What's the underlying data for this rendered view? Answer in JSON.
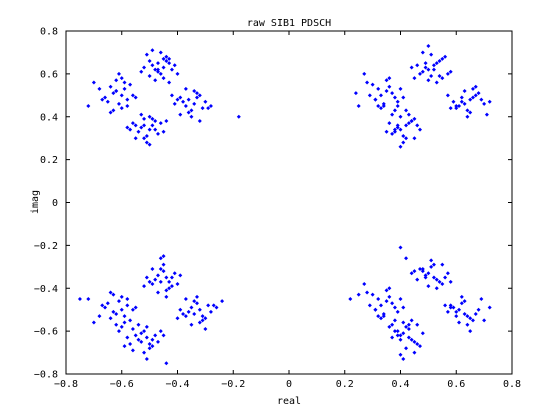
{
  "chart_data": {
    "type": "scatter",
    "title": "raw SIB1 PDSCH",
    "xlabel": "real",
    "ylabel": "imag",
    "xlim": [
      -0.8,
      0.8
    ],
    "ylim": [
      -0.8,
      0.8
    ],
    "xticks": [
      -0.8,
      -0.6,
      -0.4,
      -0.2,
      0,
      0.2,
      0.4,
      0.6,
      0.8
    ],
    "yticks": [
      -0.8,
      -0.6,
      -0.4,
      -0.2,
      0,
      0.2,
      0.4,
      0.6,
      0.8
    ],
    "xtick_labels": [
      "−0.8",
      "−0.6",
      "−0.4",
      "−0.2",
      "0",
      "0.2",
      "0.4",
      "0.6",
      "0.8"
    ],
    "ytick_labels": [
      "−0.8",
      "−0.6",
      "−0.4",
      "−0.2",
      "0",
      "0.2",
      "0.4",
      "0.6",
      "0.8"
    ],
    "grid": false,
    "marker": "diamond",
    "color": "#0000ff",
    "series": [
      {
        "x": [
          -0.62,
          -0.6,
          -0.58,
          -0.64,
          -0.66,
          -0.61,
          -0.59,
          -0.63,
          -0.57,
          -0.65,
          -0.6,
          -0.62,
          -0.56,
          -0.68,
          -0.7,
          -0.72,
          -0.6,
          -0.58,
          -0.63,
          -0.61,
          -0.55,
          -0.67,
          -0.64,
          -0.59,
          -0.62,
          -0.47,
          -0.45,
          -0.43,
          -0.48,
          -0.5,
          -0.46,
          -0.44,
          -0.49,
          -0.42,
          -0.51,
          -0.45,
          -0.47,
          -0.43,
          -0.52,
          -0.4,
          -0.46,
          -0.48,
          -0.44,
          -0.5,
          -0.41,
          -0.47,
          -0.45,
          -0.53,
          -0.43,
          -0.49,
          -0.52,
          -0.5,
          -0.48,
          -0.54,
          -0.56,
          -0.51,
          -0.49,
          -0.53,
          -0.47,
          -0.55,
          -0.5,
          -0.52,
          -0.46,
          -0.57,
          -0.45,
          -0.51,
          -0.53,
          -0.49,
          -0.55,
          -0.48,
          -0.44,
          -0.58,
          -0.5,
          -0.52,
          -0.36,
          -0.34,
          -0.32,
          -0.37,
          -0.39,
          -0.35,
          -0.33,
          -0.38,
          -0.31,
          -0.4,
          -0.34,
          -0.36,
          -0.3,
          -0.41,
          -0.29,
          -0.35,
          -0.37,
          -0.33,
          -0.39,
          -0.28,
          -0.42,
          -0.32,
          -0.18
        ],
        "y": [
          0.52,
          0.5,
          0.48,
          0.54,
          0.49,
          0.46,
          0.53,
          0.51,
          0.55,
          0.47,
          0.44,
          0.57,
          0.5,
          0.53,
          0.56,
          0.45,
          0.58,
          0.45,
          0.43,
          0.6,
          0.49,
          0.48,
          0.42,
          0.56,
          0.52,
          0.65,
          0.63,
          0.67,
          0.62,
          0.66,
          0.6,
          0.68,
          0.64,
          0.62,
          0.69,
          0.58,
          0.61,
          0.65,
          0.63,
          0.6,
          0.7,
          0.57,
          0.66,
          0.59,
          0.64,
          0.62,
          0.67,
          0.61,
          0.56,
          0.71,
          0.36,
          0.34,
          0.38,
          0.33,
          0.37,
          0.31,
          0.39,
          0.35,
          0.32,
          0.36,
          0.4,
          0.3,
          0.37,
          0.34,
          0.33,
          0.28,
          0.41,
          0.36,
          0.3,
          0.34,
          0.38,
          0.35,
          0.27,
          0.39,
          0.48,
          0.46,
          0.5,
          0.45,
          0.49,
          0.43,
          0.51,
          0.47,
          0.44,
          0.48,
          0.52,
          0.42,
          0.47,
          0.46,
          0.44,
          0.4,
          0.53,
          0.49,
          0.41,
          0.45,
          0.5,
          0.38,
          0.4
        ]
      },
      {
        "x": [
          0.35,
          0.33,
          0.31,
          0.36,
          0.38,
          0.34,
          0.32,
          0.37,
          0.3,
          0.39,
          0.33,
          0.35,
          0.29,
          0.4,
          0.28,
          0.34,
          0.36,
          0.32,
          0.38,
          0.27,
          0.41,
          0.31,
          0.24,
          0.25,
          0.37,
          0.52,
          0.5,
          0.54,
          0.48,
          0.53,
          0.51,
          0.55,
          0.49,
          0.47,
          0.56,
          0.5,
          0.52,
          0.46,
          0.57,
          0.45,
          0.51,
          0.53,
          0.49,
          0.55,
          0.44,
          0.58,
          0.48,
          0.54,
          0.5,
          0.42,
          0.4,
          0.44,
          0.38,
          0.43,
          0.41,
          0.45,
          0.39,
          0.37,
          0.46,
          0.4,
          0.42,
          0.36,
          0.47,
          0.35,
          0.41,
          0.43,
          0.39,
          0.45,
          0.38,
          0.44,
          0.4,
          0.42,
          0.39,
          0.65,
          0.63,
          0.67,
          0.61,
          0.66,
          0.64,
          0.68,
          0.62,
          0.6,
          0.69,
          0.63,
          0.65,
          0.59,
          0.7,
          0.58,
          0.64,
          0.66,
          0.62,
          0.71,
          0.6,
          0.67,
          0.57,
          0.72
        ],
        "y": [
          0.52,
          0.5,
          0.48,
          0.54,
          0.49,
          0.46,
          0.53,
          0.51,
          0.55,
          0.47,
          0.44,
          0.57,
          0.5,
          0.53,
          0.56,
          0.45,
          0.58,
          0.45,
          0.43,
          0.6,
          0.49,
          0.48,
          0.51,
          0.45,
          0.41,
          0.64,
          0.62,
          0.66,
          0.61,
          0.65,
          0.59,
          0.67,
          0.63,
          0.6,
          0.68,
          0.57,
          0.62,
          0.64,
          0.6,
          0.58,
          0.69,
          0.56,
          0.65,
          0.58,
          0.63,
          0.61,
          0.7,
          0.59,
          0.73,
          0.36,
          0.34,
          0.38,
          0.33,
          0.37,
          0.31,
          0.39,
          0.35,
          0.32,
          0.36,
          0.4,
          0.3,
          0.37,
          0.34,
          0.33,
          0.28,
          0.41,
          0.36,
          0.3,
          0.34,
          0.38,
          0.26,
          0.43,
          0.45,
          0.48,
          0.46,
          0.5,
          0.45,
          0.49,
          0.43,
          0.51,
          0.47,
          0.44,
          0.48,
          0.52,
          0.42,
          0.47,
          0.46,
          0.44,
          0.4,
          0.53,
          0.49,
          0.41,
          0.45,
          0.54,
          0.5,
          0.47
        ]
      },
      {
        "x": [
          -0.62,
          -0.6,
          -0.58,
          -0.64,
          -0.66,
          -0.61,
          -0.59,
          -0.63,
          -0.57,
          -0.65,
          -0.6,
          -0.62,
          -0.56,
          -0.68,
          -0.7,
          -0.72,
          -0.6,
          -0.58,
          -0.63,
          -0.61,
          -0.55,
          -0.67,
          -0.64,
          -0.59,
          -0.75,
          -0.46,
          -0.44,
          -0.42,
          -0.47,
          -0.49,
          -0.45,
          -0.43,
          -0.48,
          -0.41,
          -0.5,
          -0.44,
          -0.46,
          -0.4,
          -0.51,
          -0.39,
          -0.45,
          -0.47,
          -0.43,
          -0.49,
          -0.42,
          -0.46,
          -0.44,
          -0.52,
          -0.45,
          -0.53,
          -0.51,
          -0.49,
          -0.55,
          -0.57,
          -0.52,
          -0.5,
          -0.54,
          -0.48,
          -0.56,
          -0.51,
          -0.53,
          -0.47,
          -0.58,
          -0.46,
          -0.52,
          -0.54,
          -0.5,
          -0.56,
          -0.49,
          -0.45,
          -0.59,
          -0.51,
          -0.44,
          -0.34,
          -0.32,
          -0.3,
          -0.35,
          -0.37,
          -0.33,
          -0.31,
          -0.36,
          -0.29,
          -0.38,
          -0.32,
          -0.34,
          -0.28,
          -0.39,
          -0.27,
          -0.33,
          -0.35,
          -0.31,
          -0.37,
          -0.26,
          -0.4,
          -0.3,
          -0.24
        ],
        "y": [
          -0.52,
          -0.5,
          -0.48,
          -0.54,
          -0.49,
          -0.46,
          -0.53,
          -0.51,
          -0.55,
          -0.47,
          -0.44,
          -0.57,
          -0.5,
          -0.53,
          -0.56,
          -0.45,
          -0.58,
          -0.45,
          -0.43,
          -0.6,
          -0.49,
          -0.48,
          -0.42,
          -0.56,
          -0.45,
          -0.37,
          -0.35,
          -0.39,
          -0.34,
          -0.38,
          -0.32,
          -0.4,
          -0.36,
          -0.33,
          -0.37,
          -0.41,
          -0.31,
          -0.38,
          -0.35,
          -0.34,
          -0.29,
          -0.42,
          -0.37,
          -0.31,
          -0.35,
          -0.26,
          -0.44,
          -0.39,
          -0.25,
          -0.65,
          -0.63,
          -0.67,
          -0.62,
          -0.66,
          -0.6,
          -0.68,
          -0.64,
          -0.62,
          -0.69,
          -0.58,
          -0.61,
          -0.65,
          -0.63,
          -0.6,
          -0.7,
          -0.57,
          -0.66,
          -0.59,
          -0.64,
          -0.62,
          -0.67,
          -0.73,
          -0.75,
          -0.52,
          -0.5,
          -0.54,
          -0.49,
          -0.53,
          -0.47,
          -0.55,
          -0.51,
          -0.48,
          -0.52,
          -0.56,
          -0.46,
          -0.51,
          -0.5,
          -0.48,
          -0.44,
          -0.57,
          -0.53,
          -0.45,
          -0.49,
          -0.54,
          -0.59,
          -0.46
        ]
      },
      {
        "x": [
          0.35,
          0.33,
          0.31,
          0.36,
          0.38,
          0.34,
          0.32,
          0.37,
          0.3,
          0.39,
          0.33,
          0.35,
          0.29,
          0.4,
          0.28,
          0.34,
          0.36,
          0.32,
          0.38,
          0.27,
          0.41,
          0.31,
          0.25,
          0.22,
          0.37,
          0.52,
          0.5,
          0.54,
          0.48,
          0.53,
          0.51,
          0.55,
          0.49,
          0.47,
          0.56,
          0.5,
          0.52,
          0.46,
          0.57,
          0.45,
          0.51,
          0.53,
          0.49,
          0.55,
          0.44,
          0.58,
          0.48,
          0.4,
          0.42,
          0.43,
          0.41,
          0.45,
          0.39,
          0.44,
          0.42,
          0.46,
          0.4,
          0.38,
          0.47,
          0.41,
          0.43,
          0.37,
          0.48,
          0.36,
          0.42,
          0.44,
          0.4,
          0.46,
          0.39,
          0.45,
          0.41,
          0.43,
          0.4,
          0.63,
          0.61,
          0.65,
          0.59,
          0.64,
          0.62,
          0.66,
          0.6,
          0.58,
          0.67,
          0.61,
          0.63,
          0.57,
          0.68,
          0.56,
          0.62,
          0.64,
          0.6,
          0.69,
          0.58,
          0.65,
          0.72,
          0.7
        ],
        "y": [
          -0.46,
          -0.48,
          -0.5,
          -0.44,
          -0.49,
          -0.52,
          -0.45,
          -0.47,
          -0.43,
          -0.51,
          -0.54,
          -0.41,
          -0.48,
          -0.45,
          -0.42,
          -0.53,
          -0.4,
          -0.53,
          -0.55,
          -0.38,
          -0.49,
          -0.5,
          -0.43,
          -0.45,
          -0.57,
          -0.35,
          -0.33,
          -0.37,
          -0.32,
          -0.36,
          -0.3,
          -0.38,
          -0.34,
          -0.31,
          -0.35,
          -0.39,
          -0.29,
          -0.36,
          -0.33,
          -0.32,
          -0.27,
          -0.4,
          -0.35,
          -0.29,
          -0.33,
          -0.37,
          -0.31,
          -0.21,
          -0.26,
          -0.63,
          -0.61,
          -0.65,
          -0.6,
          -0.64,
          -0.58,
          -0.66,
          -0.62,
          -0.6,
          -0.67,
          -0.56,
          -0.59,
          -0.63,
          -0.61,
          -0.58,
          -0.68,
          -0.55,
          -0.64,
          -0.57,
          -0.62,
          -0.7,
          -0.73,
          -0.57,
          -0.71,
          -0.52,
          -0.5,
          -0.54,
          -0.49,
          -0.53,
          -0.47,
          -0.55,
          -0.51,
          -0.48,
          -0.52,
          -0.56,
          -0.46,
          -0.51,
          -0.5,
          -0.48,
          -0.44,
          -0.57,
          -0.53,
          -0.45,
          -0.49,
          -0.6,
          -0.49,
          -0.55
        ]
      }
    ]
  }
}
